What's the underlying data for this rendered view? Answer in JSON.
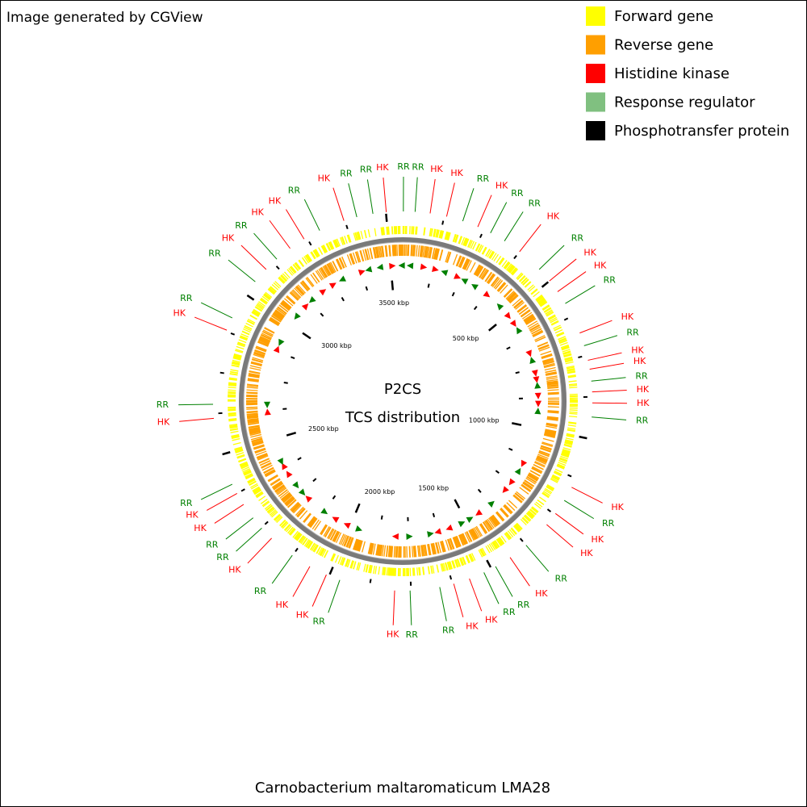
{
  "header": {
    "text": "Image generated by CGView"
  },
  "legend": [
    {
      "label": "Forward gene",
      "color": "#ffff00"
    },
    {
      "label": "Reverse gene",
      "color": "#ff9f00"
    },
    {
      "label": "Histidine kinase",
      "color": "#ff0000"
    },
    {
      "label": "Response regulator",
      "color": "#80c080"
    },
    {
      "label": "Phosphotransfer protein",
      "color": "#000000"
    }
  ],
  "map": {
    "title": "P2CS",
    "subtitle": "TCS distribution",
    "range": [
      0,
      3550
    ],
    "ticks": [
      {
        "value": 500,
        "label": "500 kbp"
      },
      {
        "value": 1000,
        "label": "1000 kbp"
      },
      {
        "value": 1500,
        "label": "1500 kbp"
      },
      {
        "value": 2000,
        "label": "2000 kbp"
      },
      {
        "value": 2500,
        "label": "2500 kbp"
      },
      {
        "value": 3000,
        "label": "3000 kbp"
      },
      {
        "value": 3500,
        "label": "3500 kbp"
      }
    ],
    "minor_tick_step": 125,
    "feature_styles": {
      "HK": {
        "color": "#ff0000"
      },
      "RR": {
        "color": "#008000"
      }
    },
    "features": [
      {
        "label": "RR",
        "position": 2
      },
      {
        "label": "RR",
        "position": 37
      },
      {
        "label": "HK",
        "position": 82
      },
      {
        "label": "HK",
        "position": 132
      },
      {
        "label": "RR",
        "position": 182
      },
      {
        "label": "HK",
        "position": 230
      },
      {
        "label": "RR",
        "position": 272
      },
      {
        "label": "RR",
        "position": 320
      },
      {
        "label": "HK",
        "position": 375
      },
      {
        "label": "RR",
        "position": 454
      },
      {
        "label": "HK",
        "position": 500
      },
      {
        "label": "HK",
        "position": 540
      },
      {
        "label": "RR",
        "position": 582
      },
      {
        "label": "HK",
        "position": 680
      },
      {
        "label": "RR",
        "position": 720
      },
      {
        "label": "HK",
        "position": 765
      },
      {
        "label": "HK",
        "position": 792
      },
      {
        "label": "RR",
        "position": 828
      },
      {
        "label": "HK",
        "position": 860
      },
      {
        "label": "HK",
        "position": 893
      },
      {
        "label": "RR",
        "position": 935
      },
      {
        "label": "HK",
        "position": 1154
      },
      {
        "label": "RR",
        "position": 1199
      },
      {
        "label": "HK",
        "position": 1246
      },
      {
        "label": "HK",
        "position": 1288
      },
      {
        "label": "RR",
        "position": 1375
      },
      {
        "label": "HK",
        "position": 1435
      },
      {
        "label": "RR",
        "position": 1486
      },
      {
        "label": "RR",
        "position": 1525
      },
      {
        "label": "HK",
        "position": 1572
      },
      {
        "label": "HK",
        "position": 1621
      },
      {
        "label": "RR",
        "position": 1664
      },
      {
        "label": "RR",
        "position": 1753
      },
      {
        "label": "HK",
        "position": 1799
      },
      {
        "label": "RR",
        "position": 1966
      },
      {
        "label": "HK",
        "position": 2009
      },
      {
        "label": "HK",
        "position": 2064
      },
      {
        "label": "RR",
        "position": 2126
      },
      {
        "label": "HK",
        "position": 2206
      },
      {
        "label": "RR",
        "position": 2248
      },
      {
        "label": "RR",
        "position": 2288
      },
      {
        "label": "HK",
        "position": 2337
      },
      {
        "label": "HK",
        "position": 2375
      },
      {
        "label": "RR",
        "position": 2406
      },
      {
        "label": "HK",
        "position": 2611
      },
      {
        "label": "RR",
        "position": 2653
      },
      {
        "label": "HK",
        "position": 2879
      },
      {
        "label": "RR",
        "position": 2919
      },
      {
        "label": "RR",
        "position": 3047
      },
      {
        "label": "HK",
        "position": 3096
      },
      {
        "label": "RR",
        "position": 3140
      },
      {
        "label": "HK",
        "position": 3191
      },
      {
        "label": "HK",
        "position": 3241
      },
      {
        "label": "RR",
        "position": 3294
      },
      {
        "label": "HK",
        "position": 3372
      },
      {
        "label": "RR",
        "position": 3412
      },
      {
        "label": "RR",
        "position": 3461
      },
      {
        "label": "HK",
        "position": 3501
      }
    ]
  },
  "footer": {
    "text": "Carnobacterium maltaromaticum LMA28"
  }
}
